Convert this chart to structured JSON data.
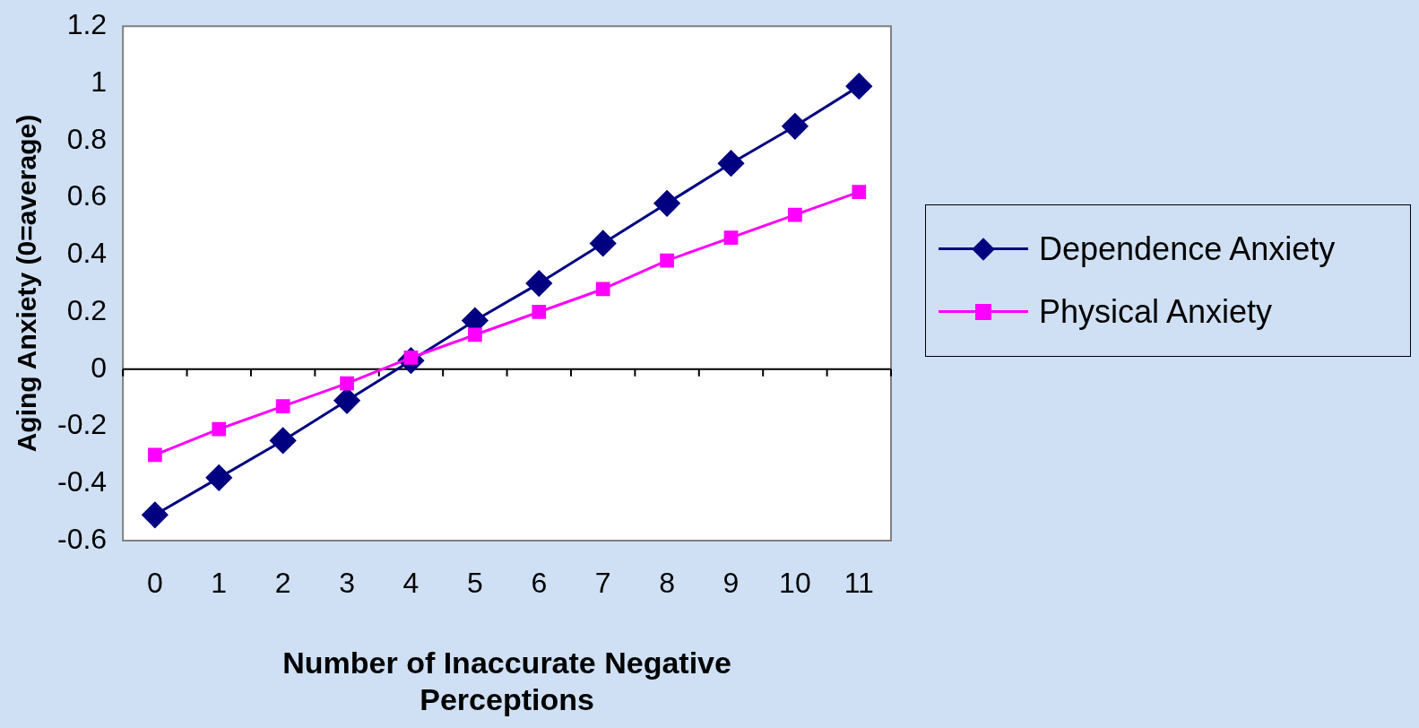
{
  "chart_data": {
    "type": "line",
    "xlabel": "Number of Inaccurate Negative Perceptions",
    "ylabel": "Aging Anxiety (0=average)",
    "categories": [
      "0",
      "1",
      "2",
      "3",
      "4",
      "5",
      "6",
      "7",
      "8",
      "9",
      "10",
      "11"
    ],
    "series": [
      {
        "name": "Dependence Anxiety",
        "color": "#000080",
        "marker": "diamond",
        "values": [
          -0.51,
          -0.38,
          -0.25,
          -0.11,
          0.03,
          0.17,
          0.3,
          0.44,
          0.58,
          0.72,
          0.85,
          0.99
        ]
      },
      {
        "name": "Physical Anxiety",
        "color": "#ff00ff",
        "marker": "square",
        "values": [
          -0.3,
          -0.21,
          -0.13,
          -0.05,
          0.04,
          0.12,
          0.2,
          0.28,
          0.38,
          0.46,
          0.54,
          0.62
        ]
      }
    ],
    "ylim": [
      -0.6,
      1.2
    ],
    "yticks": [
      -0.6,
      -0.4,
      -0.2,
      0,
      0.2,
      0.4,
      0.6,
      0.8,
      1,
      1.2
    ],
    "ref_lines": [
      {
        "axis": "y",
        "value": 0,
        "color": "#000000"
      }
    ],
    "grid": false,
    "legend": "right",
    "line_style": "solid"
  }
}
